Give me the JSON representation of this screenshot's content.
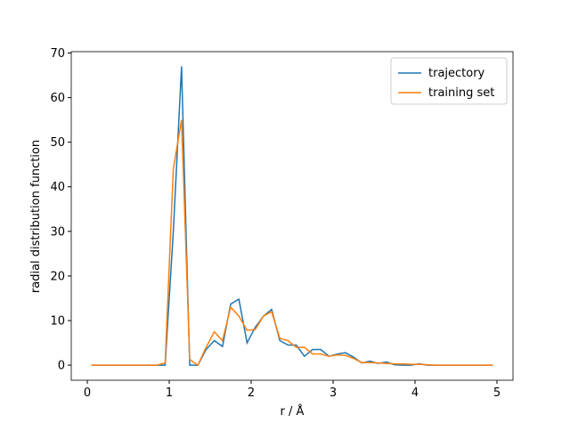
{
  "chart_data": {
    "type": "line",
    "xlabel": "r / Å",
    "ylabel": "radial distribution function",
    "x": [
      0.05,
      0.15,
      0.25,
      0.35,
      0.45,
      0.55,
      0.65,
      0.75,
      0.85,
      0.95,
      1.05,
      1.15,
      1.25,
      1.35,
      1.45,
      1.55,
      1.65,
      1.75,
      1.85,
      1.95,
      2.05,
      2.15,
      2.25,
      2.35,
      2.45,
      2.55,
      2.65,
      2.75,
      2.85,
      2.95,
      3.05,
      3.15,
      3.25,
      3.35,
      3.45,
      3.55,
      3.65,
      3.75,
      3.85,
      3.95,
      4.05,
      4.15,
      4.25,
      4.35,
      4.45,
      4.55,
      4.65,
      4.75,
      4.85,
      4.95
    ],
    "series": [
      {
        "name": "trajectory",
        "color": "#1f77b4",
        "values": [
          0,
          0,
          0,
          0,
          0,
          0,
          0,
          0,
          0,
          0,
          30,
          67,
          0,
          0,
          3.5,
          5.5,
          4.2,
          13.7,
          14.8,
          5,
          8.5,
          11,
          12.5,
          5.5,
          4.5,
          4.5,
          2,
          3.5,
          3.5,
          2,
          2.5,
          2.8,
          1.8,
          0.5,
          0.9,
          0.4,
          0.7,
          0.1,
          0,
          0,
          0.3,
          0,
          0,
          0,
          0,
          0,
          0,
          0,
          0,
          0
        ]
      },
      {
        "name": "training set",
        "color": "#ff7f0e",
        "values": [
          0,
          0,
          0,
          0,
          0,
          0,
          0,
          0,
          0,
          0.5,
          44,
          55,
          1.3,
          0,
          4,
          7.5,
          5.5,
          13,
          11,
          7.8,
          8,
          11,
          12,
          6,
          5.5,
          4,
          4,
          2.5,
          2.5,
          2,
          2.3,
          2.2,
          1.5,
          0.6,
          0.6,
          0.5,
          0.4,
          0.3,
          0.3,
          0.2,
          0.2,
          0.1,
          0,
          0,
          0,
          0,
          0,
          0,
          0,
          0
        ]
      }
    ],
    "xlim": [
      -0.196,
      5.196
    ],
    "ylim": [
      -3.38,
      70.3
    ],
    "xticks": [
      0,
      1,
      2,
      3,
      4,
      5
    ],
    "yticks": [
      0,
      10,
      20,
      30,
      40,
      50,
      60,
      70
    ],
    "legend": "upper right"
  }
}
